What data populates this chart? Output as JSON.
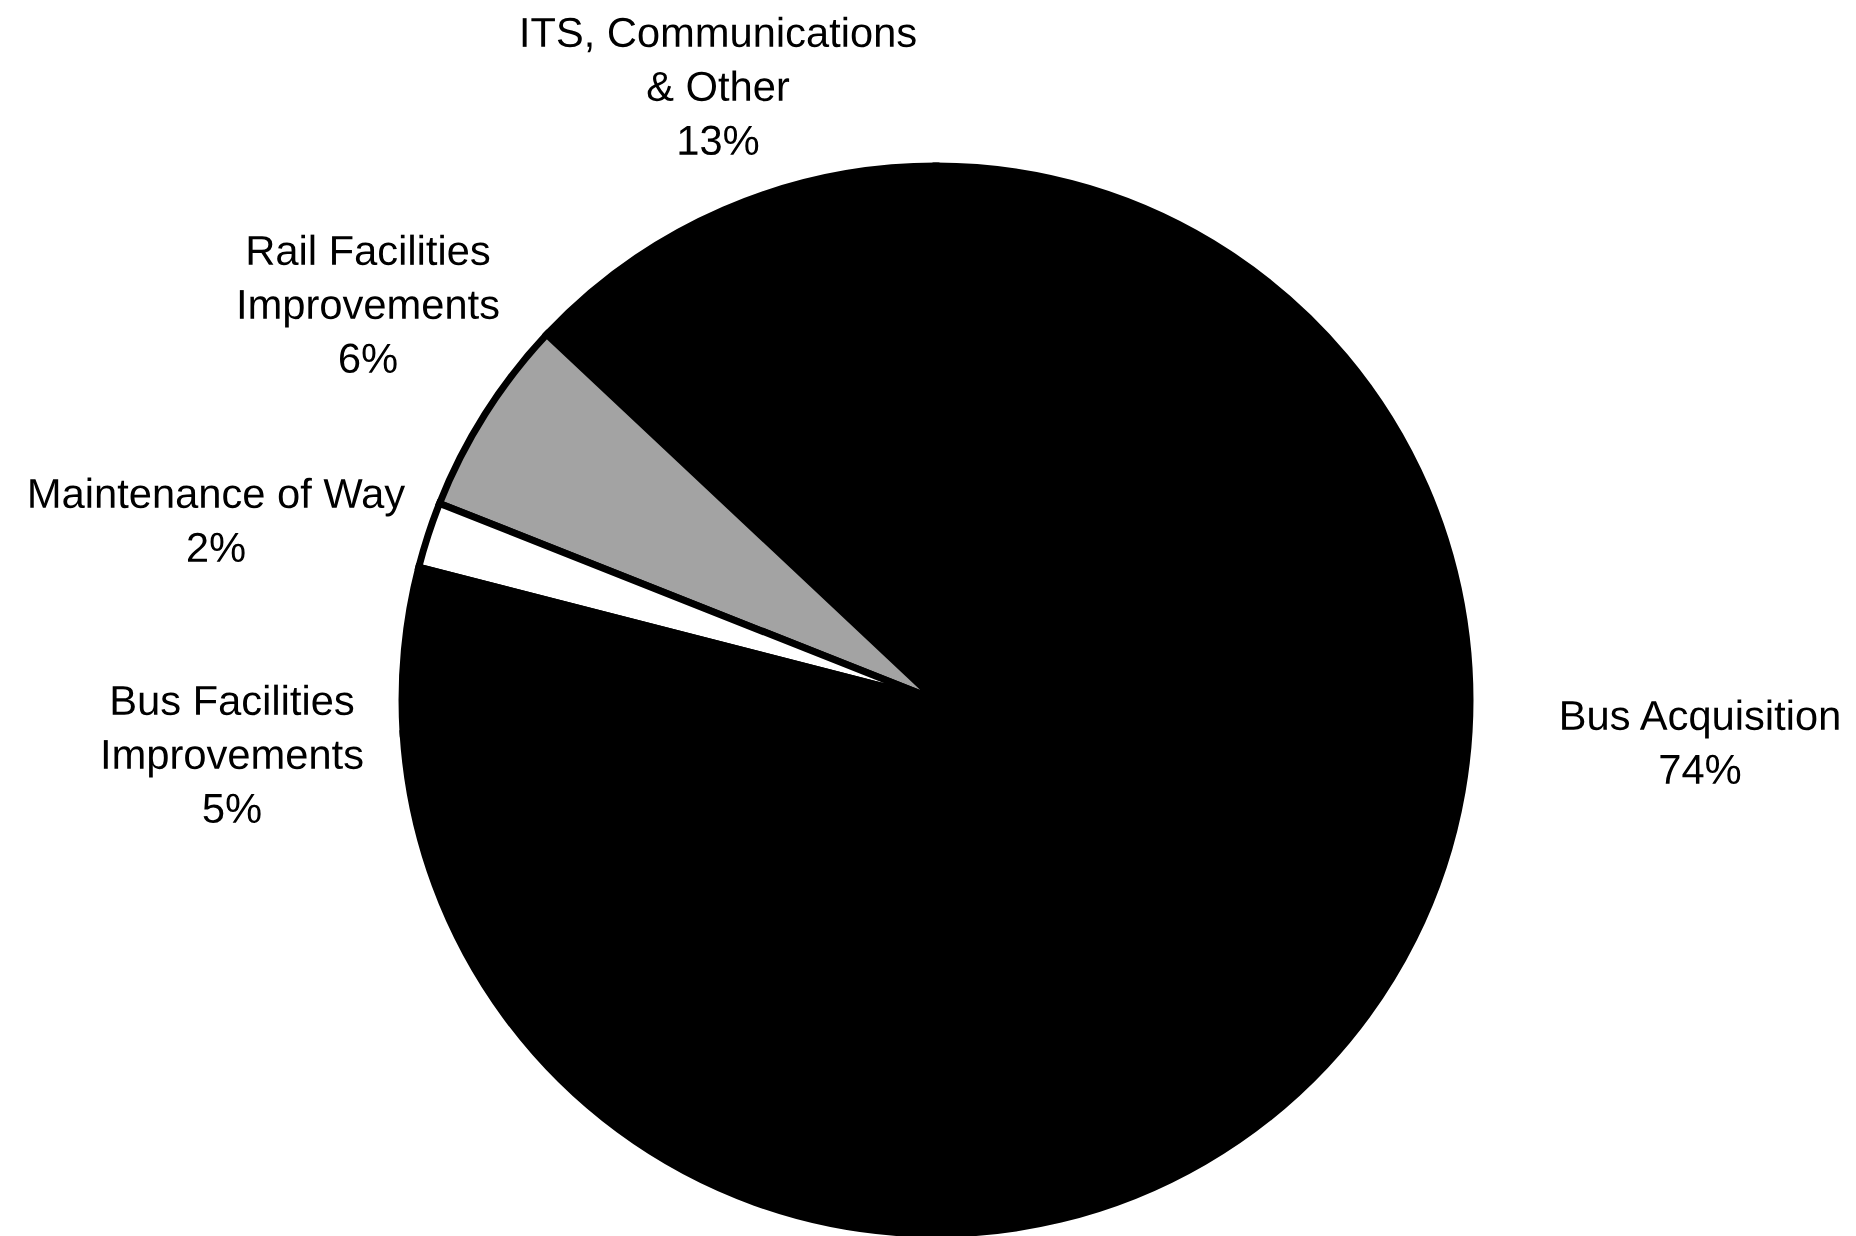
{
  "chart_data": {
    "type": "pie",
    "categories": [
      "ITS, Communications\n& Other",
      "Rail Facilities\nImprovements",
      "Maintenance of Way",
      "Bus Facilities\nImprovements",
      "Bus Acquisition"
    ],
    "values": [
      13,
      6,
      2,
      5,
      74
    ],
    "value_labels": [
      "13%",
      "6%",
      "2%",
      "5%",
      "74%"
    ],
    "colors": [
      "#000000",
      "#a3a3a3",
      "#ffffff",
      "#000000",
      "#000000"
    ]
  }
}
